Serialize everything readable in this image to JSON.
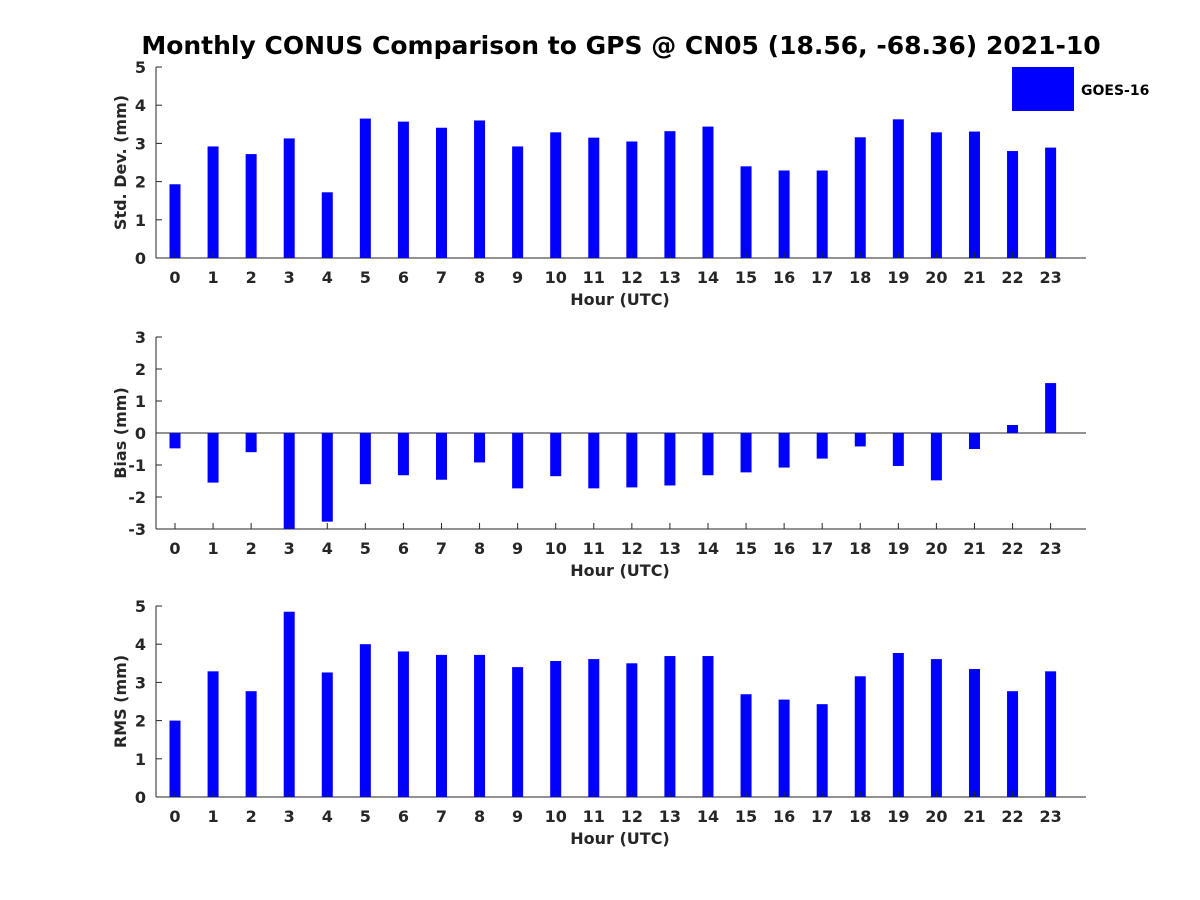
{
  "title": "Monthly CONUS Comparison to GPS @ CN05 (18.56, -68.36) 2021-10",
  "legend": {
    "label": "GOES-16",
    "color": "#0000ff",
    "position": "top-right"
  },
  "chart_data": [
    {
      "type": "bar",
      "xlabel": "Hour (UTC)",
      "ylabel": "Std. Dev. (mm)",
      "ylim": [
        0,
        5
      ],
      "yticks": [
        "0",
        "1",
        "2",
        "3",
        "4",
        "5"
      ],
      "categories": [
        "0",
        "1",
        "2",
        "3",
        "4",
        "5",
        "6",
        "7",
        "8",
        "9",
        "10",
        "11",
        "12",
        "13",
        "14",
        "15",
        "16",
        "17",
        "18",
        "19",
        "20",
        "21",
        "22",
        "23"
      ],
      "series": [
        {
          "name": "GOES-16",
          "color": "#0000ff",
          "values": [
            1.93,
            2.92,
            2.72,
            3.13,
            1.72,
            3.65,
            3.57,
            3.41,
            3.6,
            2.92,
            3.29,
            3.15,
            3.05,
            3.32,
            3.44,
            2.4,
            2.29,
            2.29,
            3.16,
            3.63,
            3.29,
            3.31,
            2.8,
            2.89
          ]
        }
      ],
      "grid": false
    },
    {
      "type": "bar",
      "xlabel": "Hour (UTC)",
      "ylabel": "Bias (mm)",
      "ylim": [
        -3,
        3
      ],
      "yticks": [
        "-3",
        "-2",
        "-1",
        "0",
        "1",
        "2",
        "3"
      ],
      "categories": [
        "0",
        "1",
        "2",
        "3",
        "4",
        "5",
        "6",
        "7",
        "8",
        "9",
        "10",
        "11",
        "12",
        "13",
        "14",
        "15",
        "16",
        "17",
        "18",
        "19",
        "20",
        "21",
        "22",
        "23"
      ],
      "series": [
        {
          "name": "GOES-16",
          "color": "#0000ff",
          "values": [
            -0.48,
            -1.55,
            -0.6,
            -3.0,
            -2.77,
            -1.6,
            -1.32,
            -1.46,
            -0.92,
            -1.73,
            -1.35,
            -1.73,
            -1.7,
            -1.64,
            -1.32,
            -1.23,
            -1.08,
            -0.8,
            -0.42,
            -1.03,
            -1.48,
            -0.5,
            0.25,
            1.56
          ]
        }
      ],
      "grid": false
    },
    {
      "type": "bar",
      "xlabel": "Hour (UTC)",
      "ylabel": "RMS (mm)",
      "ylim": [
        0,
        5
      ],
      "yticks": [
        "0",
        "1",
        "2",
        "3",
        "4",
        "5"
      ],
      "categories": [
        "0",
        "1",
        "2",
        "3",
        "4",
        "5",
        "6",
        "7",
        "8",
        "9",
        "10",
        "11",
        "12",
        "13",
        "14",
        "15",
        "16",
        "17",
        "18",
        "19",
        "20",
        "21",
        "22",
        "23"
      ],
      "series": [
        {
          "name": "GOES-16",
          "color": "#0000ff",
          "values": [
            2.0,
            3.29,
            2.77,
            4.85,
            3.26,
            4.0,
            3.81,
            3.72,
            3.72,
            3.4,
            3.56,
            3.61,
            3.5,
            3.69,
            3.69,
            2.69,
            2.55,
            2.43,
            3.16,
            3.77,
            3.61,
            3.35,
            2.77,
            3.29
          ]
        }
      ],
      "grid": false
    }
  ]
}
